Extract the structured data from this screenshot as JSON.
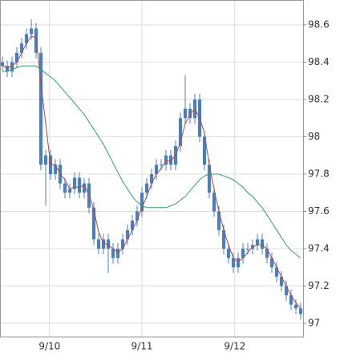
{
  "chart_data": {
    "type": "candlestick",
    "color": "#4b7fb8",
    "xlim": [
      -0.5,
      62.5
    ],
    "xticks": [
      {
        "value": 9.8,
        "label": "9/10"
      },
      {
        "value": 29.0,
        "label": "9/11"
      },
      {
        "value": 48.3,
        "label": "9/12"
      }
    ],
    "ylim": [
      96.927,
      98.733
    ],
    "yticks": [
      98.6,
      98.4,
      98.2,
      98,
      97.8,
      97.6,
      97.4,
      97.2,
      97
    ],
    "grid": true,
    "open": [
      98.4,
      98.38,
      98.35,
      98.4,
      98.45,
      98.5,
      98.55,
      98.58,
      98.45,
      97.85,
      97.9,
      97.8,
      97.85,
      97.75,
      97.7,
      97.72,
      97.78,
      97.7,
      97.75,
      97.62,
      97.45,
      97.4,
      97.45,
      97.4,
      97.35,
      97.4,
      97.45,
      97.5,
      97.55,
      97.6,
      97.7,
      97.75,
      97.8,
      97.85,
      97.85,
      97.9,
      97.85,
      97.95,
      98.1,
      98.15,
      98.1,
      98.2,
      98.0,
      97.85,
      97.7,
      97.6,
      97.5,
      97.4,
      97.35,
      97.3,
      97.35,
      97.4,
      97.4,
      97.42,
      97.45,
      97.4,
      97.35,
      97.3,
      97.25,
      97.2,
      97.15,
      97.1,
      97.08
    ],
    "high": [
      98.43,
      98.41,
      98.43,
      98.48,
      98.53,
      98.58,
      98.63,
      98.61,
      98.48,
      97.93,
      97.93,
      97.88,
      97.88,
      97.78,
      97.75,
      97.81,
      97.81,
      97.78,
      97.78,
      97.65,
      97.48,
      97.48,
      97.48,
      97.43,
      97.43,
      97.48,
      97.53,
      97.58,
      97.63,
      97.73,
      97.78,
      97.83,
      97.88,
      97.88,
      97.93,
      97.93,
      97.98,
      98.13,
      98.33,
      98.18,
      98.23,
      98.23,
      98.03,
      97.88,
      97.73,
      97.63,
      97.53,
      97.43,
      97.38,
      97.38,
      97.43,
      97.43,
      97.45,
      97.48,
      97.48,
      97.43,
      97.38,
      97.33,
      97.28,
      97.23,
      97.18,
      97.13,
      97.11
    ],
    "low": [
      98.35,
      98.32,
      98.32,
      98.37,
      98.42,
      98.47,
      98.52,
      98.42,
      97.82,
      97.63,
      97.77,
      97.77,
      97.72,
      97.67,
      97.67,
      97.69,
      97.67,
      97.67,
      97.59,
      97.42,
      97.37,
      97.37,
      97.27,
      97.32,
      97.32,
      97.37,
      97.42,
      97.47,
      97.52,
      97.57,
      97.67,
      97.72,
      97.77,
      97.82,
      97.82,
      97.82,
      97.82,
      97.92,
      98.07,
      98.07,
      98.07,
      97.97,
      97.82,
      97.67,
      97.57,
      97.47,
      97.37,
      97.32,
      97.27,
      97.27,
      97.32,
      97.37,
      97.37,
      97.39,
      97.37,
      97.32,
      97.27,
      97.22,
      97.17,
      97.12,
      97.07,
      97.05,
      97.02
    ],
    "close": [
      98.38,
      98.35,
      98.4,
      98.45,
      98.5,
      98.55,
      98.58,
      98.45,
      97.85,
      97.9,
      97.8,
      97.85,
      97.75,
      97.7,
      97.72,
      97.78,
      97.7,
      97.75,
      97.62,
      97.45,
      97.4,
      97.45,
      97.4,
      97.35,
      97.4,
      97.45,
      97.5,
      97.55,
      97.6,
      97.7,
      97.75,
      97.8,
      97.85,
      97.85,
      97.9,
      97.85,
      97.95,
      98.1,
      98.15,
      98.1,
      98.2,
      98.0,
      97.85,
      97.7,
      97.6,
      97.5,
      97.4,
      97.35,
      97.3,
      97.35,
      97.4,
      97.4,
      97.42,
      97.45,
      97.4,
      97.35,
      97.3,
      97.25,
      97.2,
      97.15,
      97.1,
      97.08,
      97.05
    ],
    "series": [
      {
        "color": "#b0484a",
        "values": [
          98.38,
          98.37,
          98.38,
          98.4,
          98.45,
          98.5,
          98.54,
          98.53,
          98.29,
          98.07,
          97.85,
          97.85,
          97.8,
          97.77,
          97.72,
          97.73,
          97.73,
          97.74,
          97.69,
          97.61,
          97.49,
          97.43,
          97.42,
          97.4,
          97.38,
          97.4,
          97.45,
          97.5,
          97.55,
          97.62,
          97.68,
          97.75,
          97.8,
          97.83,
          97.87,
          97.87,
          97.9,
          97.97,
          98.07,
          98.12,
          98.15,
          98.1,
          98.02,
          97.85,
          97.72,
          97.6,
          97.5,
          97.42,
          97.35,
          97.33,
          97.35,
          97.38,
          97.41,
          97.42,
          97.42,
          97.4,
          97.35,
          97.3,
          97.25,
          97.2,
          97.15,
          97.11,
          97.08
        ]
      },
      {
        "color": "#2f9e6e",
        "values": [
          98.35,
          98.35,
          98.36,
          98.37,
          98.38,
          98.38,
          98.38,
          98.38,
          98.36,
          98.34,
          98.32,
          98.3,
          98.27,
          98.24,
          98.21,
          98.18,
          98.15,
          98.12,
          98.08,
          98.04,
          98.0,
          97.96,
          97.91,
          97.86,
          97.81,
          97.76,
          97.72,
          97.68,
          97.65,
          97.63,
          97.62,
          97.62,
          97.62,
          97.62,
          97.62,
          97.63,
          97.64,
          97.66,
          97.68,
          97.71,
          97.74,
          97.77,
          97.79,
          97.8,
          97.8,
          97.8,
          97.79,
          97.78,
          97.77,
          97.75,
          97.73,
          97.7,
          97.68,
          97.65,
          97.62,
          97.58,
          97.54,
          97.5,
          97.46,
          97.42,
          97.39,
          97.37,
          97.35
        ]
      }
    ]
  }
}
